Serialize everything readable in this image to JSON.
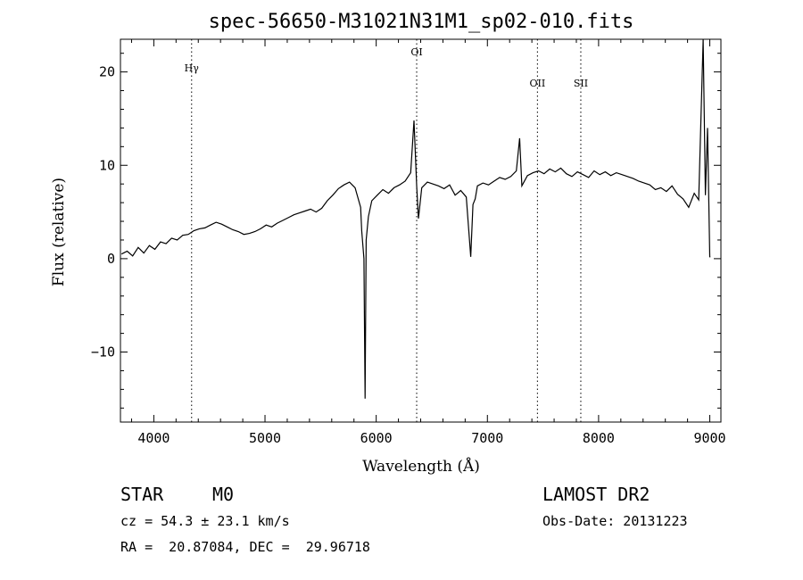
{
  "chart_data": {
    "type": "line",
    "title": "spec-56650-M31021N31M1_sp02-010.fits",
    "xlabel": "Wavelength (Å)",
    "ylabel": "Flux (relative)",
    "xlim": [
      3700,
      9100
    ],
    "ylim": [
      -17.5,
      23.5
    ],
    "xticks": [
      4000,
      5000,
      6000,
      7000,
      8000,
      9000
    ],
    "yticks": [
      -10,
      0,
      10,
      20
    ],
    "grid": false,
    "line_color": "#000000",
    "lines": [
      {
        "label": "Hγ",
        "x": 4340
      },
      {
        "label": "OI",
        "x": 6364
      },
      {
        "label": "OII",
        "x": 7450
      },
      {
        "label": "SII",
        "x": 7840
      }
    ],
    "spectrum": {
      "x": [
        3710,
        3760,
        3810,
        3860,
        3910,
        3960,
        4010,
        4060,
        4110,
        4160,
        4210,
        4260,
        4310,
        4360,
        4410,
        4460,
        4510,
        4560,
        4610,
        4660,
        4710,
        4760,
        4810,
        4860,
        4910,
        4960,
        5010,
        5060,
        5110,
        5160,
        5210,
        5260,
        5310,
        5360,
        5410,
        5460,
        5510,
        5560,
        5610,
        5660,
        5710,
        5760,
        5810,
        5860,
        5870,
        5890,
        5900,
        5910,
        5930,
        5960,
        6010,
        6060,
        6110,
        6160,
        6210,
        6260,
        6310,
        6340,
        6364,
        6380,
        6410,
        6460,
        6510,
        6560,
        6610,
        6660,
        6710,
        6760,
        6810,
        6850,
        6870,
        6890,
        6910,
        6960,
        7010,
        7060,
        7110,
        7160,
        7210,
        7260,
        7290,
        7310,
        7360,
        7410,
        7460,
        7510,
        7560,
        7610,
        7660,
        7710,
        7760,
        7810,
        7860,
        7910,
        7960,
        8010,
        8060,
        8110,
        8160,
        8210,
        8260,
        8310,
        8360,
        8410,
        8460,
        8510,
        8560,
        8610,
        8660,
        8710,
        8760,
        8810,
        8860,
        8900,
        8940,
        8960,
        8980,
        9000,
        9005
      ],
      "y": [
        0.5,
        0.8,
        0.3,
        1.2,
        0.6,
        1.4,
        1.0,
        1.8,
        1.6,
        2.2,
        2.0,
        2.5,
        2.6,
        3.0,
        3.2,
        3.3,
        3.6,
        3.9,
        3.7,
        3.4,
        3.1,
        2.9,
        2.6,
        2.7,
        2.9,
        3.2,
        3.6,
        3.4,
        3.8,
        4.1,
        4.4,
        4.7,
        4.9,
        5.1,
        5.3,
        5.0,
        5.4,
        6.2,
        6.8,
        7.5,
        7.9,
        8.2,
        7.6,
        5.5,
        3.0,
        0.0,
        -15.0,
        2.0,
        4.5,
        6.2,
        6.8,
        7.4,
        7.0,
        7.6,
        7.9,
        8.3,
        9.2,
        14.8,
        7.8,
        4.3,
        7.6,
        8.2,
        8.0,
        7.8,
        7.5,
        7.9,
        6.8,
        7.3,
        6.6,
        0.2,
        5.8,
        6.4,
        7.8,
        8.1,
        7.9,
        8.3,
        8.7,
        8.5,
        8.8,
        9.4,
        12.9,
        7.8,
        8.9,
        9.2,
        9.4,
        9.1,
        9.6,
        9.3,
        9.7,
        9.1,
        8.8,
        9.3,
        9.0,
        8.7,
        9.4,
        9.0,
        9.3,
        8.9,
        9.2,
        9.0,
        8.8,
        8.6,
        8.3,
        8.1,
        7.9,
        7.4,
        7.6,
        7.2,
        7.8,
        6.9,
        6.4,
        5.5,
        7.0,
        6.3,
        23.5,
        6.8,
        14.0,
        0.2,
        0.2
      ]
    }
  },
  "footer": {
    "object_class": "STAR",
    "subclass": "M0",
    "survey": "LAMOST DR2",
    "cz": "cz = 54.3 ± 23.1 km/s",
    "obs_date": "Obs-Date: 20131223",
    "coords": "RA =  20.87084, DEC =  29.96718"
  }
}
